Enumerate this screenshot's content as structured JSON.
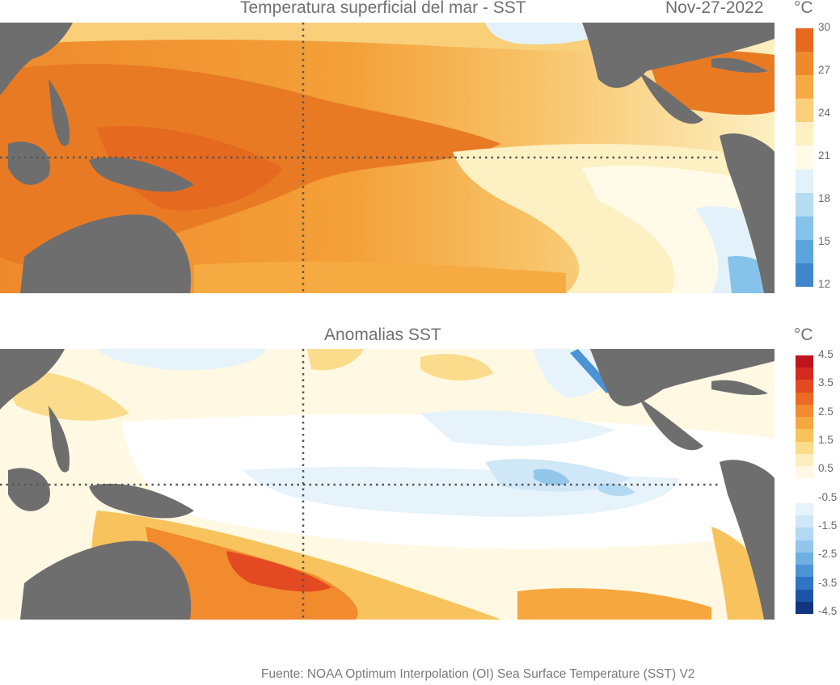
{
  "top_panel": {
    "title": "Temperatura superficial del mar - SST",
    "date": "Nov-27-2022",
    "unit": "°C",
    "colorbar": {
      "ticks": [
        "30",
        "27",
        "24",
        "21",
        "18",
        "15",
        "12"
      ],
      "colors": [
        "#e56a20",
        "#ee8a2c",
        "#f6ab42",
        "#f9cf7a",
        "#fdf0c2",
        "#fffbe8",
        "#e2f1fa",
        "#b4dcf2",
        "#86c3ea",
        "#5aa5de",
        "#3f86cc"
      ]
    }
  },
  "bottom_panel": {
    "title": "Anomalias SST",
    "unit": "°C",
    "colorbar": {
      "ticks": [
        "4.5",
        "3.5",
        "2.5",
        "1.5",
        "0.5",
        "-0.5",
        "-1.5",
        "-2.5",
        "-3.5",
        "-4.5"
      ],
      "colors": [
        "#c0141c",
        "#d42a20",
        "#e34a22",
        "#ec6a25",
        "#f28a2e",
        "#f6a73e",
        "#f8c35d",
        "#fbdc8c",
        "#fdeebf",
        "#fff8e2",
        "#ffffff",
        "#ffffff",
        "#e6f3fb",
        "#cfe7f7",
        "#b3d9f2",
        "#93c6eb",
        "#6fb0e2",
        "#4c93d6",
        "#2f74c5",
        "#1c55a8",
        "#12357f"
      ]
    }
  },
  "footer": "Fuente: NOAA Optimum Interpolation (OI) Sea Surface Temperature (SST) V2",
  "colors": {
    "land": "#6f6e6e",
    "grid": "#555555"
  }
}
